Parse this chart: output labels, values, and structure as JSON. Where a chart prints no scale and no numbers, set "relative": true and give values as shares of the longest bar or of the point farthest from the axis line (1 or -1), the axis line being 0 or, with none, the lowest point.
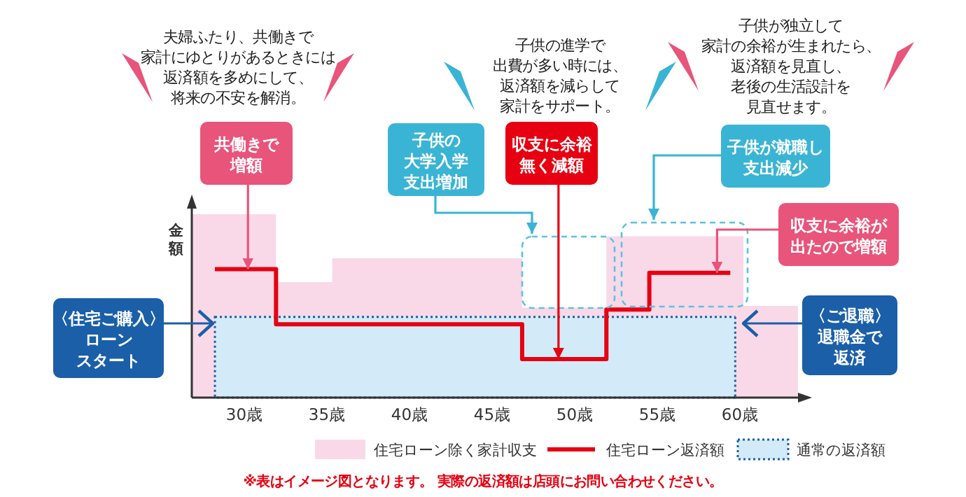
{
  "chart_data": {
    "type": "area",
    "relative": true,
    "ylabel": "金額",
    "legend": "bottom",
    "grid": false,
    "xlim": [
      26.8,
      63.5
    ],
    "xticks": [
      {
        "value": 30,
        "label": "30歳"
      },
      {
        "value": 35,
        "label": "35歳"
      },
      {
        "value": 40,
        "label": "40歳"
      },
      {
        "value": 45,
        "label": "45歳"
      },
      {
        "value": 50,
        "label": "50歳"
      },
      {
        "value": 55,
        "label": "55歳"
      },
      {
        "value": 60,
        "label": "60歳"
      }
    ],
    "series": [
      {
        "name": "住宅ローン除く家計収支",
        "color": "#f9d9e8",
        "x": [
          26.8,
          31.9,
          35.3,
          46.8,
          51.9,
          60.2,
          63.5
        ],
        "values": [
          1,
          0.63,
          0.76,
          0.49,
          0.88,
          0.5,
          0.5
        ]
      },
      {
        "name": "住宅ローン返済額",
        "color": "#e60012",
        "type": "step",
        "x": [
          28.2,
          31.9,
          46.8,
          51.9,
          54.5,
          59.4
        ],
        "values": [
          0.7,
          0.4,
          0.21,
          0.48,
          0.68,
          0.68
        ]
      },
      {
        "name": "通常の返済額",
        "color": "#d3ebf8",
        "type": "area",
        "line_style": "dotted",
        "x": [
          28.2,
          59.7
        ],
        "values": [
          0.44,
          0.44
        ]
      }
    ],
    "annotations": [
      "夫婦ふたり、共働きで家計にゆとりがあるときには返済額を多めにして、将来の不安を解消。",
      "子供の進学で出費が多い時には、返済額を減らして家計をサポート。",
      "子供が独立して家計の余裕が生まれたら、返済額を見直し、老後の生活設計を見直せます。",
      {
        "text": "共働きで増額",
        "x": 30.2,
        "y": 0.7
      },
      "子供の大学入学支出増加",
      {
        "text": "収支に余裕無く減額",
        "x": 49.0,
        "y": 0.21
      },
      "子供が就職し支出減少",
      {
        "text": "収支に余裕が出たので増額",
        "x": 58.6,
        "y": 0.68
      },
      "〈住宅ご購入〉ローンスタート",
      "〈ご退職〉退職金で返済",
      "※表はイメージ図となります。 実際の返済額は店頭にお問い合わせください。"
    ]
  }
}
